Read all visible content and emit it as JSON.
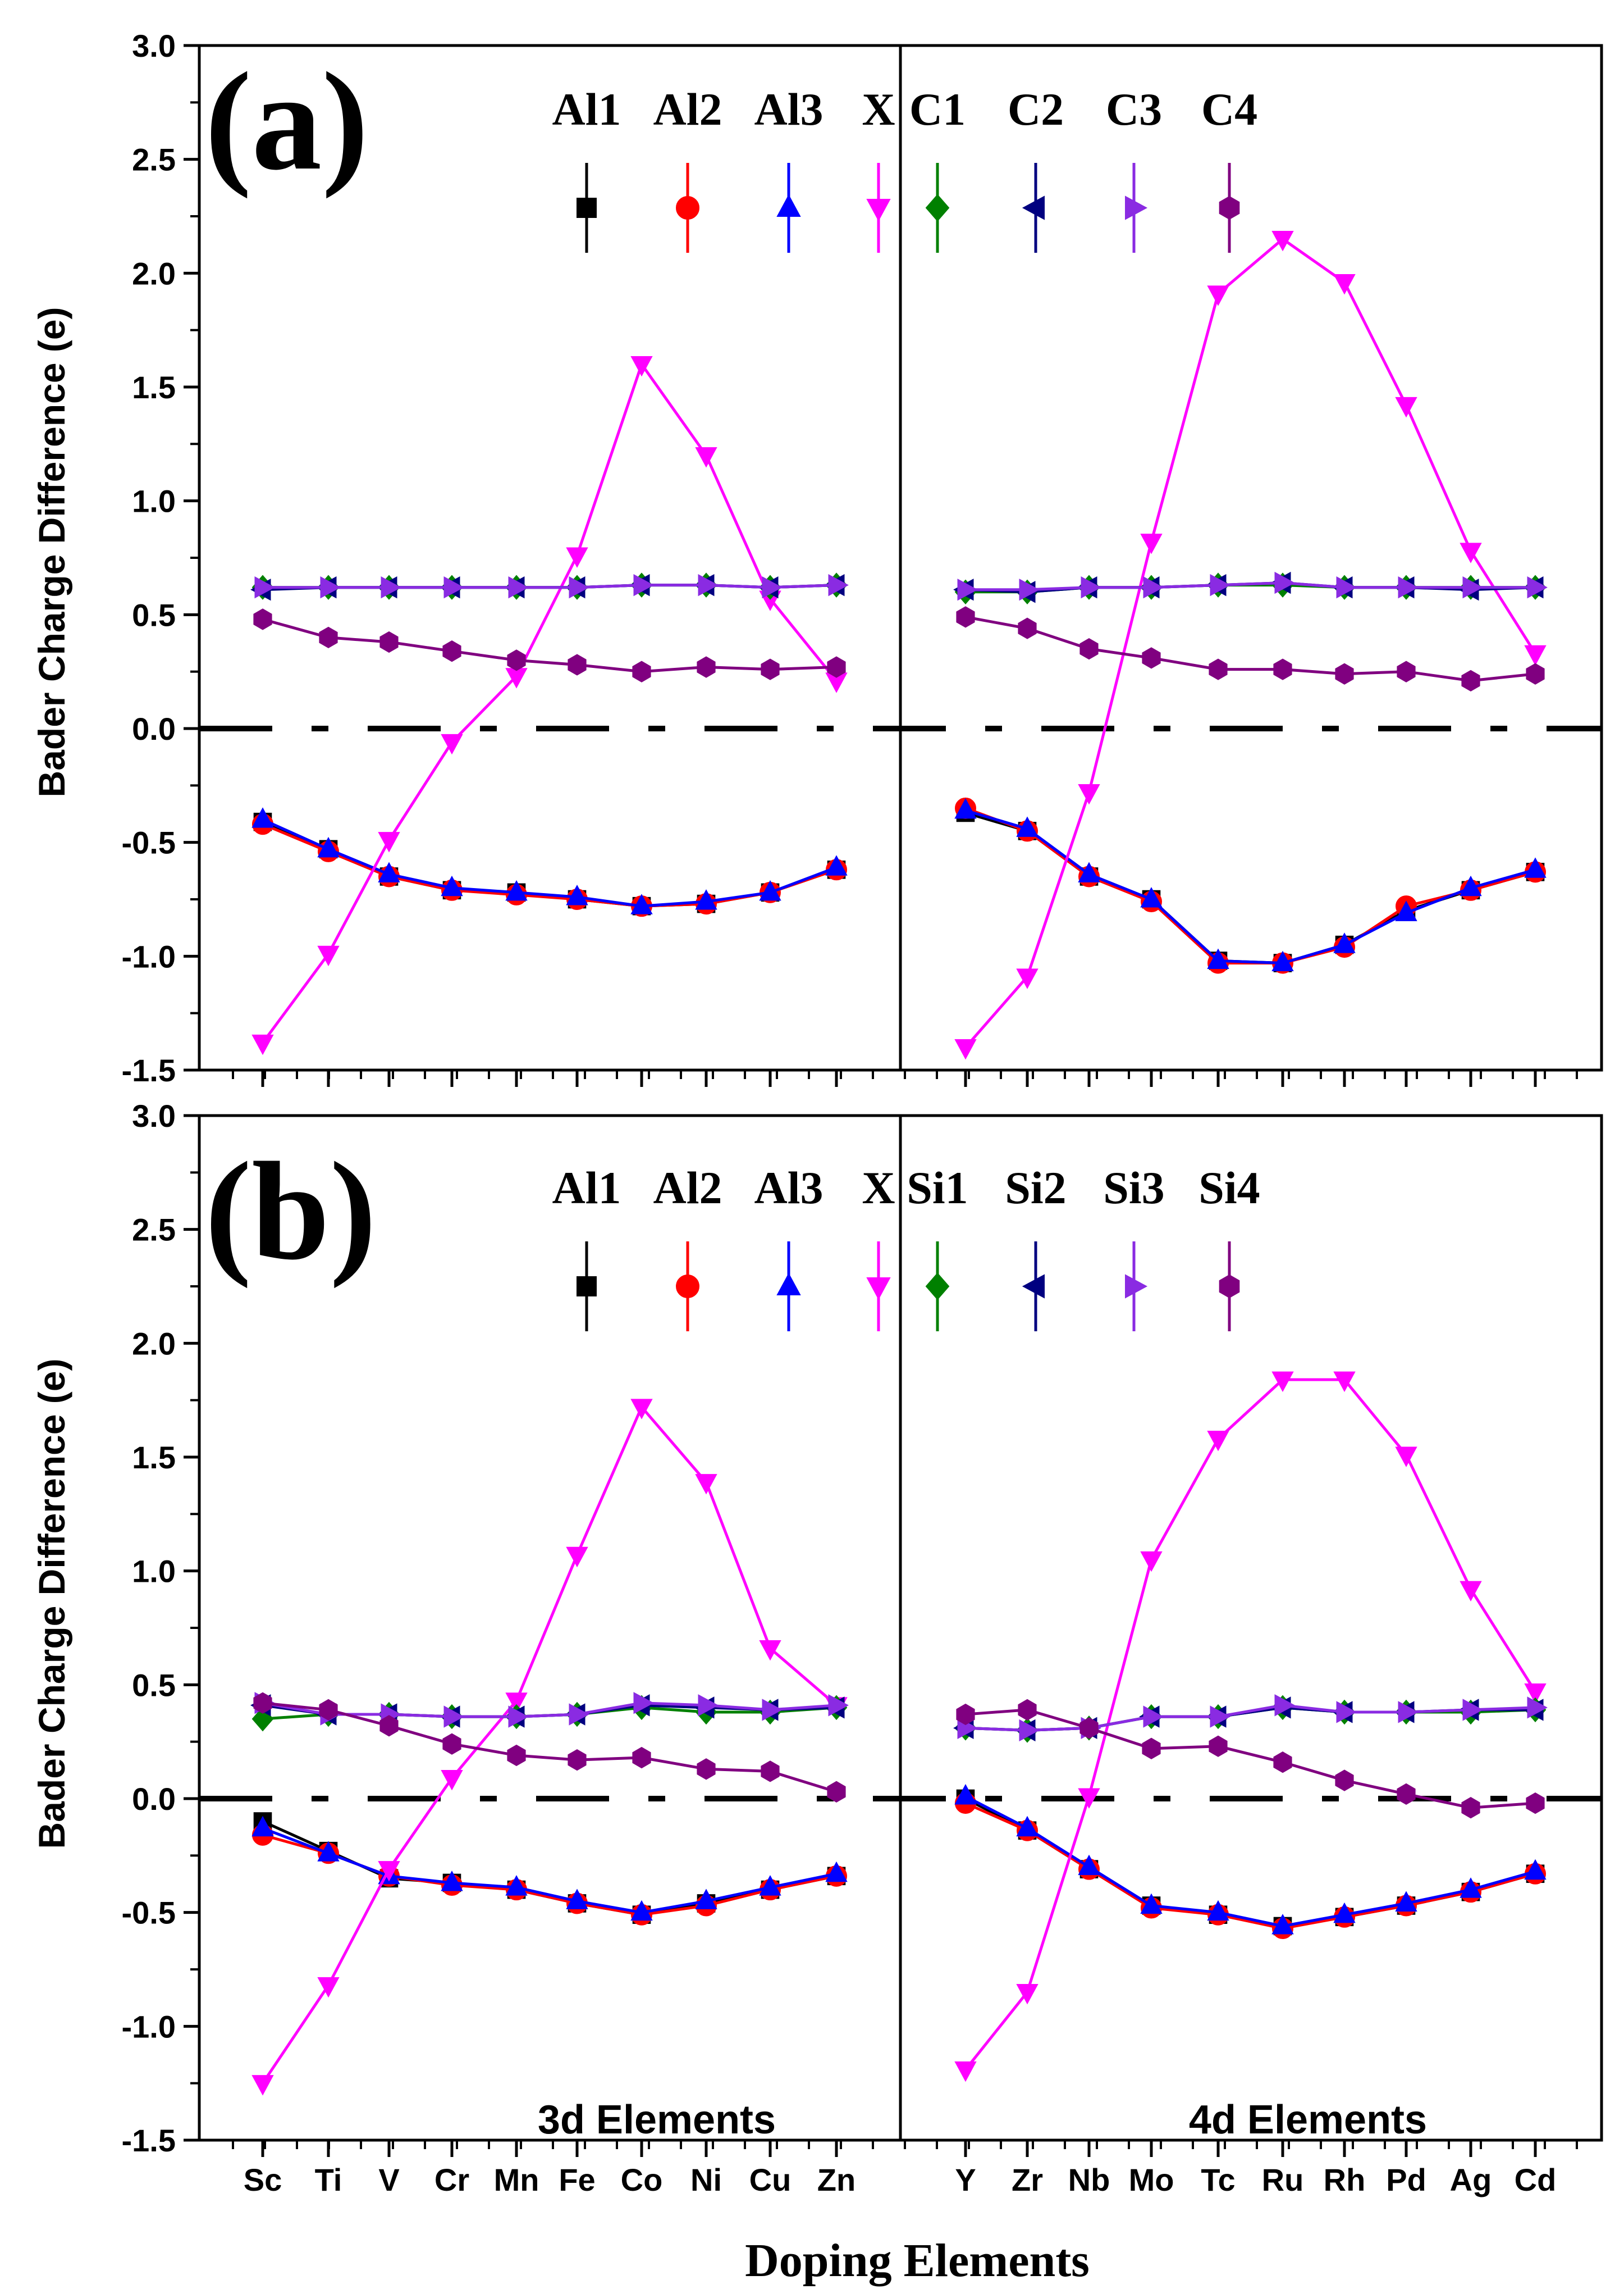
{
  "figure": {
    "xlabel": "Doping Elements",
    "ylabel": "Bader Charge Difference (e)"
  },
  "chart_data": [
    {
      "type": "line",
      "panel_label": "(a)",
      "ylabel": "Bader Charge Difference (e)",
      "ylim": [
        -1.5,
        3.0
      ],
      "yticks": [
        "3.0",
        "2.5",
        "2.0",
        "1.5",
        "1.0",
        "0.5",
        "0.0",
        "-0.5",
        "-1.0",
        "-1.5"
      ],
      "groups": [
        {
          "categories": [
            "Sc",
            "Ti",
            "V",
            "Cr",
            "Mn",
            "Fe",
            "Co",
            "Ni",
            "Cu",
            "Zn"
          ]
        },
        {
          "categories": [
            "Y",
            "Zr",
            "Nb",
            "Mo",
            "Tc",
            "Ru",
            "Rh",
            "Pd",
            "Ag",
            "Cd"
          ]
        }
      ],
      "series": [
        {
          "name": "Al1",
          "color": "#000000",
          "marker": "square",
          "values": [
            [
              -0.41,
              -0.53,
              -0.65,
              -0.71,
              -0.72,
              -0.75,
              -0.78,
              -0.77,
              -0.72,
              -0.62
            ],
            [
              -0.37,
              -0.45,
              -0.65,
              -0.75,
              -1.02,
              -1.03,
              -0.95,
              -0.8,
              -0.71,
              -0.63
            ]
          ]
        },
        {
          "name": "Al2",
          "color": "#ff0000",
          "marker": "circle",
          "values": [
            [
              -0.42,
              -0.54,
              -0.65,
              -0.71,
              -0.73,
              -0.75,
              -0.78,
              -0.77,
              -0.72,
              -0.62
            ],
            [
              -0.35,
              -0.45,
              -0.65,
              -0.76,
              -1.03,
              -1.03,
              -0.96,
              -0.78,
              -0.71,
              -0.63
            ]
          ]
        },
        {
          "name": "Al3",
          "color": "#0000ff",
          "marker": "triangle-up",
          "values": [
            [
              -0.4,
              -0.53,
              -0.64,
              -0.7,
              -0.72,
              -0.74,
              -0.78,
              -0.76,
              -0.72,
              -0.61
            ],
            [
              -0.36,
              -0.44,
              -0.64,
              -0.75,
              -1.02,
              -1.03,
              -0.95,
              -0.81,
              -0.7,
              -0.62
            ]
          ]
        },
        {
          "name": "X",
          "color": "#ff00ff",
          "marker": "triangle-down",
          "values": [
            [
              -1.38,
              -0.99,
              -0.49,
              -0.06,
              0.23,
              0.76,
              1.6,
              1.2,
              0.57,
              0.21
            ],
            [
              -1.4,
              -1.09,
              -0.28,
              0.82,
              1.91,
              2.15,
              1.96,
              1.42,
              0.78,
              0.33
            ]
          ]
        },
        {
          "name": "C1",
          "color": "#008000",
          "marker": "diamond",
          "values": [
            [
              0.62,
              0.62,
              0.62,
              0.62,
              0.62,
              0.62,
              0.63,
              0.63,
              0.62,
              0.63
            ],
            [
              0.6,
              0.6,
              0.62,
              0.62,
              0.63,
              0.63,
              0.62,
              0.62,
              0.62,
              0.62
            ]
          ]
        },
        {
          "name": "C2",
          "color": "#000080",
          "marker": "triangle-left",
          "values": [
            [
              0.61,
              0.62,
              0.62,
              0.62,
              0.62,
              0.62,
              0.63,
              0.63,
              0.62,
              0.63
            ],
            [
              0.61,
              0.6,
              0.62,
              0.62,
              0.63,
              0.64,
              0.62,
              0.62,
              0.61,
              0.62
            ]
          ]
        },
        {
          "name": "C3",
          "color": "#8a2be2",
          "marker": "triangle-right",
          "values": [
            [
              0.62,
              0.62,
              0.62,
              0.62,
              0.62,
              0.62,
              0.63,
              0.63,
              0.62,
              0.63
            ],
            [
              0.61,
              0.61,
              0.62,
              0.62,
              0.63,
              0.64,
              0.62,
              0.62,
              0.62,
              0.62
            ]
          ]
        },
        {
          "name": "C4",
          "color": "#800080",
          "marker": "hexagon",
          "values": [
            [
              0.48,
              0.4,
              0.38,
              0.34,
              0.3,
              0.28,
              0.25,
              0.27,
              0.26,
              0.27
            ],
            [
              0.49,
              0.44,
              0.35,
              0.31,
              0.26,
              0.26,
              0.24,
              0.25,
              0.21,
              0.24
            ]
          ]
        }
      ]
    },
    {
      "type": "line",
      "panel_label": "(b)",
      "ylabel": "Bader Charge Difference (e)",
      "ylim": [
        -1.5,
        3.0
      ],
      "yticks": [
        "3.0",
        "2.5",
        "2.0",
        "1.5",
        "1.0",
        "0.5",
        "0.0",
        "-0.5",
        "-1.0",
        "-1.5"
      ],
      "xlabel": "Doping Elements",
      "groups": [
        {
          "label": "3d Elements",
          "categories": [
            "Sc",
            "Ti",
            "V",
            "Cr",
            "Mn",
            "Fe",
            "Co",
            "Ni",
            "Cu",
            "Zn"
          ]
        },
        {
          "label": "4d Elements",
          "categories": [
            "Y",
            "Zr",
            "Nb",
            "Mo",
            "Tc",
            "Ru",
            "Rh",
            "Pd",
            "Ag",
            "Cd"
          ]
        }
      ],
      "series": [
        {
          "name": "Al1",
          "color": "#000000",
          "marker": "square",
          "values": [
            [
              -0.1,
              -0.23,
              -0.35,
              -0.37,
              -0.4,
              -0.46,
              -0.51,
              -0.46,
              -0.4,
              -0.34
            ],
            [
              0.0,
              -0.14,
              -0.31,
              -0.47,
              -0.51,
              -0.56,
              -0.52,
              -0.47,
              -0.41,
              -0.33
            ]
          ]
        },
        {
          "name": "Al2",
          "color": "#ff0000",
          "marker": "circle",
          "values": [
            [
              -0.16,
              -0.24,
              -0.34,
              -0.38,
              -0.4,
              -0.46,
              -0.51,
              -0.47,
              -0.4,
              -0.34
            ],
            [
              -0.02,
              -0.14,
              -0.31,
              -0.48,
              -0.51,
              -0.57,
              -0.52,
              -0.47,
              -0.41,
              -0.33
            ]
          ]
        },
        {
          "name": "Al3",
          "color": "#0000ff",
          "marker": "triangle-up",
          "values": [
            [
              -0.13,
              -0.24,
              -0.34,
              -0.37,
              -0.39,
              -0.45,
              -0.5,
              -0.45,
              -0.39,
              -0.33
            ],
            [
              0.01,
              -0.13,
              -0.3,
              -0.47,
              -0.5,
              -0.56,
              -0.51,
              -0.46,
              -0.4,
              -0.32
            ]
          ]
        },
        {
          "name": "X",
          "color": "#ff00ff",
          "marker": "triangle-down",
          "values": [
            [
              -1.25,
              -0.82,
              -0.31,
              0.09,
              0.43,
              1.07,
              1.72,
              1.39,
              0.66,
              0.41
            ],
            [
              -1.19,
              -0.85,
              0.01,
              1.05,
              1.58,
              1.84,
              1.84,
              1.51,
              0.92,
              0.47
            ]
          ]
        },
        {
          "name": "Si1",
          "color": "#008000",
          "marker": "diamond",
          "values": [
            [
              0.35,
              0.37,
              0.37,
              0.36,
              0.36,
              0.37,
              0.4,
              0.38,
              0.38,
              0.4
            ],
            [
              0.31,
              0.3,
              0.31,
              0.36,
              0.36,
              0.4,
              0.38,
              0.38,
              0.38,
              0.39
            ]
          ]
        },
        {
          "name": "Si2",
          "color": "#000080",
          "marker": "triangle-left",
          "values": [
            [
              0.41,
              0.37,
              0.37,
              0.36,
              0.36,
              0.37,
              0.41,
              0.4,
              0.39,
              0.4
            ],
            [
              0.31,
              0.3,
              0.31,
              0.36,
              0.36,
              0.4,
              0.38,
              0.38,
              0.39,
              0.39
            ]
          ]
        },
        {
          "name": "Si3",
          "color": "#8a2be2",
          "marker": "triangle-right",
          "values": [
            [
              0.42,
              0.37,
              0.37,
              0.36,
              0.36,
              0.37,
              0.42,
              0.41,
              0.39,
              0.41
            ],
            [
              0.31,
              0.3,
              0.31,
              0.36,
              0.36,
              0.41,
              0.38,
              0.38,
              0.39,
              0.4
            ]
          ]
        },
        {
          "name": "Si4",
          "color": "#800080",
          "marker": "hexagon",
          "values": [
            [
              0.42,
              0.39,
              0.32,
              0.24,
              0.19,
              0.17,
              0.18,
              0.13,
              0.12,
              0.03
            ],
            [
              0.37,
              0.39,
              0.31,
              0.22,
              0.23,
              0.16,
              0.08,
              0.02,
              -0.04,
              -0.02
            ]
          ]
        }
      ]
    }
  ]
}
